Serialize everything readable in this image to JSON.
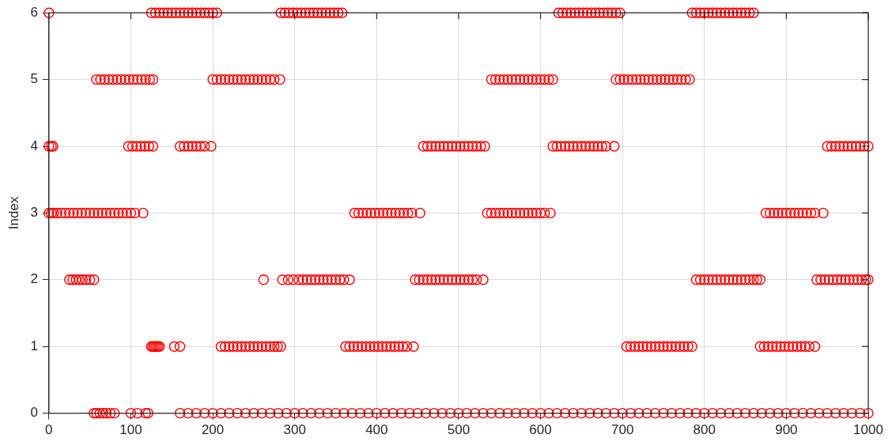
{
  "chart_data": {
    "type": "scatter",
    "ylabel": "Index",
    "xlim": [
      0,
      1000
    ],
    "ylim": [
      0,
      6
    ],
    "xticks": [
      0,
      100,
      200,
      300,
      400,
      500,
      600,
      700,
      800,
      900,
      1000
    ],
    "yticks": [
      0,
      1,
      2,
      3,
      4,
      5,
      6
    ],
    "grid": true,
    "marker": "circle",
    "series": [
      {
        "color": "#ff0000",
        "x": [
          0,
          125,
          130,
          135,
          140,
          145,
          150,
          155,
          160,
          165,
          170,
          175,
          180,
          185,
          190,
          195,
          200,
          205,
          283,
          288,
          293,
          298,
          303,
          308,
          313,
          318,
          323,
          328,
          333,
          338,
          343,
          348,
          353,
          358,
          622,
          627,
          632,
          637,
          642,
          647,
          652,
          657,
          662,
          667,
          672,
          677,
          682,
          687,
          692,
          697,
          785,
          790,
          795,
          800,
          805,
          810,
          815,
          820,
          825,
          830,
          835,
          840,
          845,
          850,
          855,
          860
        ],
        "values": [
          6,
          6,
          6,
          6,
          6,
          6,
          6,
          6,
          6,
          6,
          6,
          6,
          6,
          6,
          6,
          6,
          6,
          6,
          6,
          6,
          6,
          6,
          6,
          6,
          6,
          6,
          6,
          6,
          6,
          6,
          6,
          6,
          6,
          6,
          6,
          6,
          6,
          6,
          6,
          6,
          6,
          6,
          6,
          6,
          6,
          6,
          6,
          6,
          6,
          6,
          6,
          6,
          6,
          6,
          6,
          6,
          6,
          6,
          6,
          6,
          6,
          6,
          6,
          6,
          6,
          6
        ]
      },
      {
        "color": "#ff0000",
        "x": [
          58,
          63,
          68,
          73,
          78,
          83,
          88,
          93,
          98,
          103,
          108,
          113,
          118,
          123,
          127,
          200,
          205,
          210,
          215,
          220,
          225,
          230,
          235,
          240,
          245,
          250,
          255,
          260,
          265,
          270,
          275,
          282,
          540,
          545,
          550,
          555,
          560,
          565,
          570,
          575,
          580,
          585,
          590,
          595,
          600,
          605,
          610,
          615,
          692,
          697,
          702,
          707,
          712,
          717,
          722,
          727,
          732,
          737,
          742,
          747,
          752,
          757,
          762,
          767,
          772,
          777,
          782
        ],
        "values": [
          5,
          5,
          5,
          5,
          5,
          5,
          5,
          5,
          5,
          5,
          5,
          5,
          5,
          5,
          5,
          5,
          5,
          5,
          5,
          5,
          5,
          5,
          5,
          5,
          5,
          5,
          5,
          5,
          5,
          5,
          5,
          5,
          5,
          5,
          5,
          5,
          5,
          5,
          5,
          5,
          5,
          5,
          5,
          5,
          5,
          5,
          5,
          5,
          5,
          5,
          5,
          5,
          5,
          5,
          5,
          5,
          5,
          5,
          5,
          5,
          5,
          5,
          5,
          5,
          5,
          5,
          5
        ]
      },
      {
        "color": "#ff0000",
        "x": [
          0,
          3,
          5,
          97,
          102,
          107,
          112,
          117,
          122,
          127,
          160,
          165,
          170,
          175,
          180,
          185,
          190,
          198,
          457,
          462,
          467,
          472,
          477,
          482,
          487,
          492,
          497,
          502,
          507,
          512,
          517,
          522,
          527,
          532,
          615,
          620,
          625,
          630,
          635,
          640,
          645,
          650,
          655,
          660,
          665,
          670,
          675,
          680,
          690,
          950,
          955,
          960,
          965,
          970,
          975,
          980,
          985,
          990,
          995,
          1000
        ],
        "values": [
          4,
          4,
          4,
          4,
          4,
          4,
          4,
          4,
          4,
          4,
          4,
          4,
          4,
          4,
          4,
          4,
          4,
          4,
          4,
          4,
          4,
          4,
          4,
          4,
          4,
          4,
          4,
          4,
          4,
          4,
          4,
          4,
          4,
          4,
          4,
          4,
          4,
          4,
          4,
          4,
          4,
          4,
          4,
          4,
          4,
          4,
          4,
          4,
          4,
          4,
          4,
          4,
          4,
          4,
          4,
          4,
          4,
          4,
          4,
          4
        ]
      },
      {
        "color": "#ff0000",
        "x": [
          0,
          3,
          6,
          10,
          15,
          20,
          25,
          30,
          35,
          40,
          45,
          50,
          55,
          60,
          65,
          70,
          75,
          80,
          85,
          90,
          95,
          100,
          105,
          115,
          373,
          378,
          383,
          388,
          393,
          398,
          403,
          408,
          413,
          418,
          423,
          428,
          433,
          438,
          443,
          453,
          535,
          540,
          545,
          550,
          555,
          560,
          565,
          570,
          575,
          580,
          585,
          590,
          595,
          600,
          605,
          612,
          875,
          880,
          885,
          890,
          895,
          900,
          905,
          910,
          915,
          920,
          925,
          930,
          935,
          945
        ],
        "values": [
          3,
          3,
          3,
          3,
          3,
          3,
          3,
          3,
          3,
          3,
          3,
          3,
          3,
          3,
          3,
          3,
          3,
          3,
          3,
          3,
          3,
          3,
          3,
          3,
          3,
          3,
          3,
          3,
          3,
          3,
          3,
          3,
          3,
          3,
          3,
          3,
          3,
          3,
          3,
          3,
          3,
          3,
          3,
          3,
          3,
          3,
          3,
          3,
          3,
          3,
          3,
          3,
          3,
          3,
          3,
          3,
          3,
          3,
          3,
          3,
          3,
          3,
          3,
          3,
          3,
          3,
          3,
          3,
          3,
          3
        ]
      },
      {
        "color": "#ff0000",
        "x": [
          25,
          29,
          33,
          37,
          41,
          45,
          50,
          55,
          262,
          285,
          292,
          298,
          305,
          310,
          315,
          320,
          325,
          330,
          335,
          340,
          345,
          350,
          355,
          360,
          367,
          447,
          452,
          457,
          462,
          467,
          472,
          477,
          482,
          487,
          492,
          497,
          502,
          507,
          512,
          517,
          522,
          530,
          790,
          795,
          800,
          805,
          810,
          815,
          820,
          825,
          830,
          835,
          840,
          845,
          850,
          855,
          860,
          864,
          868,
          937,
          942,
          947,
          952,
          957,
          962,
          967,
          972,
          977,
          982,
          987,
          992,
          997,
          1000
        ],
        "values": [
          2,
          2,
          2,
          2,
          2,
          2,
          2,
          2,
          2,
          2,
          2,
          2,
          2,
          2,
          2,
          2,
          2,
          2,
          2,
          2,
          2,
          2,
          2,
          2,
          2,
          2,
          2,
          2,
          2,
          2,
          2,
          2,
          2,
          2,
          2,
          2,
          2,
          2,
          2,
          2,
          2,
          2,
          2,
          2,
          2,
          2,
          2,
          2,
          2,
          2,
          2,
          2,
          2,
          2,
          2,
          2,
          2,
          2,
          2,
          2,
          2,
          2,
          2,
          2,
          2,
          2,
          2,
          2,
          2,
          2,
          2,
          2,
          2
        ]
      },
      {
        "color": "#ff0000",
        "x": [
          125,
          127,
          129,
          131,
          133,
          135,
          153,
          160,
          210,
          215,
          220,
          225,
          230,
          235,
          240,
          245,
          250,
          255,
          260,
          265,
          270,
          275,
          279,
          283,
          362,
          367,
          372,
          377,
          382,
          387,
          392,
          397,
          402,
          407,
          412,
          417,
          422,
          427,
          432,
          437,
          445,
          705,
          710,
          715,
          720,
          725,
          730,
          735,
          740,
          745,
          750,
          755,
          760,
          765,
          770,
          775,
          780,
          785,
          868,
          873,
          878,
          883,
          888,
          893,
          898,
          903,
          908,
          913,
          918,
          923,
          928,
          935
        ],
        "values": [
          1,
          1,
          1,
          1,
          1,
          1,
          1,
          1,
          1,
          1,
          1,
          1,
          1,
          1,
          1,
          1,
          1,
          1,
          1,
          1,
          1,
          1,
          1,
          1,
          1,
          1,
          1,
          1,
          1,
          1,
          1,
          1,
          1,
          1,
          1,
          1,
          1,
          1,
          1,
          1,
          1,
          1,
          1,
          1,
          1,
          1,
          1,
          1,
          1,
          1,
          1,
          1,
          1,
          1,
          1,
          1,
          1,
          1,
          1,
          1,
          1,
          1,
          1,
          1,
          1,
          1,
          1,
          1,
          1,
          1,
          1,
          1
        ]
      },
      {
        "color": "#ff0000",
        "x": [
          55,
          58,
          62,
          66,
          70,
          75,
          80,
          100,
          108,
          118,
          121,
          160,
          170,
          180,
          190,
          200,
          210,
          220,
          230,
          240,
          250,
          260,
          270,
          280,
          290,
          300,
          310,
          320,
          330,
          340,
          350,
          360,
          370,
          380,
          390,
          400,
          410,
          420,
          430,
          440,
          450,
          460,
          470,
          480,
          490,
          500,
          510,
          520,
          530,
          540,
          550,
          560,
          570,
          580,
          590,
          600,
          610,
          620,
          630,
          640,
          650,
          660,
          670,
          680,
          690,
          700,
          710,
          720,
          730,
          740,
          750,
          760,
          770,
          780,
          790,
          800,
          810,
          820,
          830,
          840,
          850,
          860,
          870,
          880,
          890,
          900,
          910,
          920,
          930,
          940,
          950,
          960,
          970,
          980,
          990,
          1000
        ],
        "values": [
          0,
          0,
          0,
          0,
          0,
          0,
          0,
          0,
          0,
          0,
          0,
          0,
          0,
          0,
          0,
          0,
          0,
          0,
          0,
          0,
          0,
          0,
          0,
          0,
          0,
          0,
          0,
          0,
          0,
          0,
          0,
          0,
          0,
          0,
          0,
          0,
          0,
          0,
          0,
          0,
          0,
          0,
          0,
          0,
          0,
          0,
          0,
          0,
          0,
          0,
          0,
          0,
          0,
          0,
          0,
          0,
          0,
          0,
          0,
          0,
          0,
          0,
          0,
          0,
          0,
          0,
          0,
          0,
          0,
          0,
          0,
          0,
          0,
          0,
          0,
          0,
          0,
          0,
          0,
          0,
          0,
          0,
          0,
          0,
          0,
          0,
          0,
          0,
          0,
          0,
          0,
          0,
          0,
          0,
          0,
          0
        ]
      }
    ]
  }
}
